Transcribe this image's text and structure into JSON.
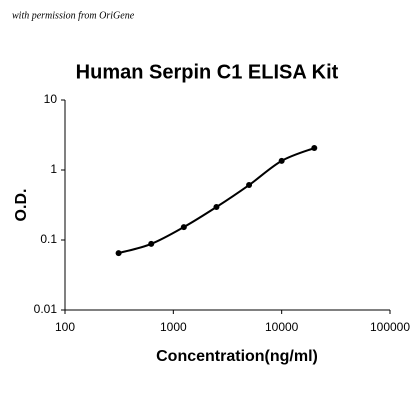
{
  "chart_data": {
    "type": "scatter",
    "annotation": "with permission from OriGene",
    "title": "Human Serpin C1 ELISA Kit",
    "x_label": "Concentration(ng/ml)",
    "y_label": "O.D.",
    "log_x": true,
    "log_y": true,
    "grid": false,
    "smooth_line": true,
    "xlim": [
      100,
      100000
    ],
    "xticks": [
      100,
      1000,
      10000,
      100000
    ],
    "ylim": [
      0.01,
      10
    ],
    "yticks": [
      0.01,
      0.1,
      1,
      10
    ],
    "series": [
      {
        "color": "#000000",
        "x": [
          312.5,
          625,
          1250,
          2500,
          5000,
          10000,
          20000
        ],
        "values": [
          0.065,
          0.088,
          0.153,
          0.296,
          0.61,
          1.35,
          2.06
        ]
      }
    ]
  }
}
